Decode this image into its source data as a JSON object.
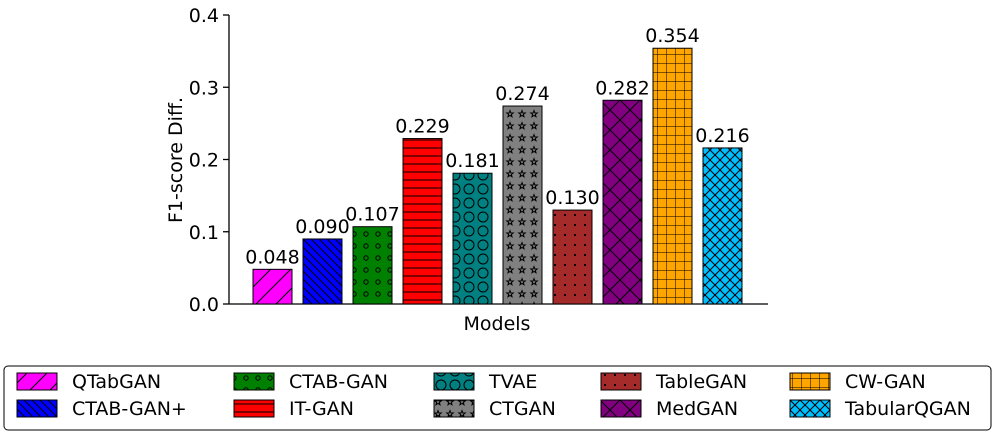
{
  "chart_data": {
    "type": "bar",
    "title": "",
    "xlabel": "Models",
    "ylabel": "F1-score Diff.",
    "ylim": [
      0,
      0.4
    ],
    "yticks": [
      "0.0",
      "0.1",
      "0.2",
      "0.3",
      "0.4"
    ],
    "grid": false,
    "legend_position": "bottom",
    "categories": [
      "QTabGAN",
      "CTAB-GAN+",
      "CTAB-GAN",
      "IT-GAN",
      "TVAE",
      "CTGAN",
      "TableGAN",
      "MedGAN",
      "CW-GAN",
      "TabularQGAN"
    ],
    "values": [
      0.048,
      0.09,
      0.107,
      0.229,
      0.181,
      0.274,
      0.13,
      0.282,
      0.354,
      0.216
    ],
    "value_labels": [
      "0.048",
      "0.090",
      "0.107",
      "0.229",
      "0.181",
      "0.274",
      "0.130",
      "0.282",
      "0.354",
      "0.216"
    ],
    "colors": [
      "#ff00ff",
      "#0000ff",
      "#008000",
      "#ff0000",
      "#008080",
      "#808080",
      "#a52a2a",
      "#800080",
      "#ffa500",
      "#00bfff"
    ],
    "hatches": [
      "diag",
      "backdiag",
      "smallcircles",
      "hlines",
      "bigcircles",
      "stars",
      "dots",
      "cross",
      "grid",
      "crosshatch"
    ]
  }
}
